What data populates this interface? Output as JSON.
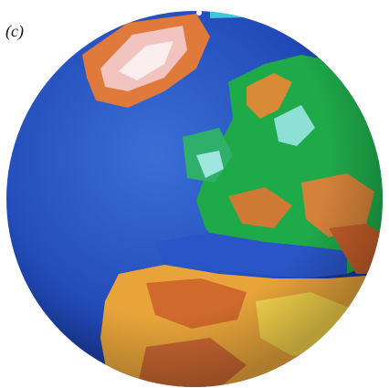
{
  "panel_label": "(c)"
}
